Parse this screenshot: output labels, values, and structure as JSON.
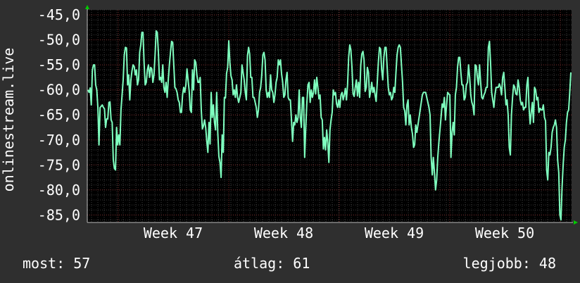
{
  "chart_data": {
    "type": "line",
    "title": "",
    "ylabel": "onlinestream.live",
    "xlabel": "",
    "ylim": [
      -86.5,
      -44
    ],
    "y_ticks": [
      -45,
      -50,
      -55,
      -60,
      -65,
      -70,
      -75,
      -80,
      -85
    ],
    "y_tick_labels": [
      "-45,0",
      "-50,0",
      "-55,0",
      "-60,0",
      "-65,0",
      "-70,0",
      "-75,0",
      "-80,0",
      "-85,0"
    ],
    "x_ticks": [
      "Week 47",
      "Week 48",
      "Week 49",
      "Week 50"
    ],
    "grid": true,
    "legend": "none",
    "series": [
      {
        "color": "#7fffbf",
        "values": [
          -60,
          -60.5,
          -59.6,
          -63,
          -56,
          -55,
          -55,
          -59,
          -60,
          -63.5,
          -71,
          -63.5,
          -63.3,
          -63,
          -63.5,
          -63.8,
          -67.5,
          -65.8,
          -65.8,
          -62.5,
          -62.4,
          -66,
          -66.5,
          -74,
          -75.7,
          -76,
          -67.5,
          -71,
          -69,
          -71,
          -64,
          -61,
          -58,
          -53,
          -51.5,
          -51.6,
          -59,
          -57,
          -62,
          -58,
          -56.2,
          -55,
          -55.3,
          -57,
          -56,
          -59,
          -58,
          -52.5,
          -51,
          -48.5,
          -48.5,
          -54.5,
          -59,
          -58.5,
          -56,
          -55,
          -57.5,
          -55.5,
          -55.8,
          -58.5,
          -57,
          -53,
          -48.2,
          -48.5,
          -52.5,
          -58,
          -57.5,
          -58.5,
          -55,
          -59.5,
          -60.5,
          -58.5,
          -61.5,
          -58,
          -55,
          -52.5,
          -50.3,
          -50.5,
          -55,
          -59.5,
          -59.8,
          -60.5,
          -62,
          -62.5,
          -64.5,
          -64.5,
          -61,
          -59.5,
          -60.5,
          -59,
          -55.8,
          -58,
          -60.2,
          -64,
          -64.5,
          -56,
          -60,
          -54,
          -54.5,
          -57,
          -58.5,
          -58.5,
          -57.5,
          -64,
          -67.8,
          -67.2,
          -66,
          -67.5,
          -70.2,
          -72.5,
          -66.5,
          -70.8,
          -60.5,
          -65.5,
          -63,
          -66.5,
          -68,
          -60.5,
          -68.5,
          -73.3,
          -74.5,
          -77.5,
          -69,
          -72.5,
          -61.5,
          -61.6,
          -56.7,
          -55.5,
          -50.2,
          -54.5,
          -57.2,
          -58,
          -61,
          -60,
          -61.5,
          -59,
          -61.5,
          -62.5,
          -61.5,
          -60.5,
          -55,
          -56.5,
          -58,
          -60.5,
          -62,
          -53.2,
          -51.5,
          -52.8,
          -57.5,
          -57.5,
          -61.5,
          -61.5,
          -62.5,
          -63.5,
          -65.5,
          -64,
          -60.5,
          -59.5,
          -57,
          -53,
          -52.5,
          -54,
          -60,
          -61.5,
          -60.5,
          -61.5,
          -57,
          -60,
          -60.5,
          -62.5,
          -61,
          -58.5,
          -57.5,
          -54,
          -55,
          -54,
          -56.8,
          -58.5,
          -61.5,
          -61,
          -58,
          -56.5,
          -61.5,
          -62,
          -62,
          -66,
          -70.3,
          -66.5,
          -67,
          -65,
          -66.5,
          -65.5,
          -60,
          -65.5,
          -67.5,
          -61.5,
          -61.5,
          -73.5,
          -67.5,
          -62.5,
          -59,
          -58.5,
          -62.5,
          -60,
          -61.5,
          -60.5,
          -58,
          -60.8,
          -57.5,
          -59.5,
          -61.8,
          -61,
          -65.5,
          -66,
          -71.8,
          -69.5,
          -72,
          -68,
          -70.5,
          -74.5,
          -68,
          -66,
          -64.5,
          -60,
          -61,
          -60.5,
          -62.8,
          -63.5,
          -62,
          -63.5,
          -61,
          -60.5,
          -62,
          -61,
          -59.7,
          -62,
          -59,
          -53.5,
          -51,
          -52,
          -55.5,
          -60.8,
          -61.3,
          -59.5,
          -58,
          -61.2,
          -58.5,
          -61.5,
          -55,
          -52.8,
          -52.3,
          -54,
          -60.3,
          -59.5,
          -55.5,
          -56.5,
          -61.5,
          -60.3,
          -58.5,
          -60.5,
          -59.5,
          -61,
          -62.3,
          -58.5,
          -54.5,
          -51.5,
          -51.8,
          -56,
          -58,
          -53.5,
          -51.5,
          -51.5,
          -55.5,
          -59.5,
          -61,
          -60.5,
          -62,
          -61.5,
          -59.5,
          -60.5,
          -56.5,
          -53,
          -51.5,
          -51,
          -51.5,
          -55,
          -58.5,
          -63.5,
          -64.2,
          -67,
          -63,
          -62,
          -67,
          -65,
          -67.5,
          -68.8,
          -71.5,
          -71,
          -67,
          -68.5,
          -67,
          -65.5,
          -64,
          -62.5,
          -61,
          -60.5,
          -60.5,
          -60.5,
          -61.5,
          -62.5,
          -63.5,
          -65,
          -73.5,
          -77,
          -73.5,
          -76.5,
          -80,
          -78,
          -73.5,
          -70.5,
          -68,
          -65.5,
          -62.8,
          -63.5,
          -61.5,
          -66,
          -63,
          -60.5,
          -60.8,
          -61,
          -73.5,
          -68.5,
          -66.5,
          -69,
          -61,
          -59.5,
          -55.5,
          -53.5,
          -53.5,
          -56.5,
          -59,
          -59,
          -62,
          -61.5,
          -59,
          -58.5,
          -55,
          -57.5,
          -61,
          -62.5,
          -63.2,
          -65,
          -55,
          -55.2,
          -57.5,
          -59,
          -55,
          -58.5,
          -61.5,
          -61.8,
          -61,
          -60.5,
          -59.5,
          -59.5,
          -51.5,
          -50.3,
          -54.5,
          -60.5,
          -62,
          -63.5,
          -61,
          -59.5,
          -59.5,
          -59.5,
          -58.8,
          -59.5,
          -61,
          -57.5,
          -56.5,
          -59.5,
          -63,
          -62,
          -65,
          -71.5,
          -73,
          -65,
          -61.5,
          -59,
          -59.5,
          -60.8,
          -61,
          -58,
          -59.5,
          -62,
          -63,
          -62.5,
          -64,
          -63.5,
          -63.5,
          -59,
          -57.5,
          -63.5,
          -66.8,
          -64.5,
          -62.5,
          -66.5,
          -59.5,
          -60,
          -62,
          -61.5,
          -64.5,
          -63.7,
          -64,
          -64,
          -63,
          -65.5,
          -66.2,
          -76,
          -78,
          -72.5,
          -73,
          -71.5,
          -68.5,
          -67.5,
          -67,
          -66,
          -67.5,
          -74,
          -76.5,
          -85,
          -86,
          -79.5,
          -75,
          -71.5,
          -70,
          -66.5,
          -64.5,
          -64,
          -60.5,
          -56.5
        ]
      }
    ]
  },
  "footer": {
    "current": "most: 57",
    "average": "átlag: 61",
    "best": "legjobb: 48"
  },
  "colors": {
    "background": "#2f2f2f",
    "plot_background": "#000000",
    "line": "#7fffbf",
    "grid_major": "#7a2a2a",
    "grid_minor": "#3a3a3a",
    "axis_arrow": "#00cc00",
    "text": "#ffffff"
  }
}
